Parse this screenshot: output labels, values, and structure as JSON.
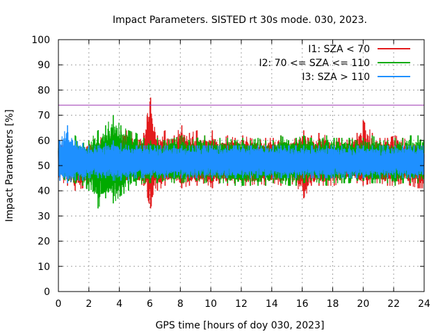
{
  "chart_data": {
    "type": "line",
    "title": "Impact Parameters. SISTED rt 30s mode. 030, 2023.",
    "xlabel": "GPS time [hours of doy 030, 2023]",
    "ylabel": "Impact Parameters [%]",
    "xlim": [
      0,
      24
    ],
    "ylim": [
      0,
      100
    ],
    "xticks": [
      0,
      2,
      4,
      6,
      8,
      10,
      12,
      14,
      16,
      18,
      20,
      22,
      24
    ],
    "yticks": [
      0,
      10,
      20,
      30,
      40,
      50,
      60,
      70,
      80,
      90,
      100
    ],
    "grid": true,
    "legend_position": "top-right",
    "threshold": {
      "value": 74,
      "color": "#9b30b0"
    },
    "series": [
      {
        "name": "I1: SZA < 70",
        "color": "#e31a1c",
        "x": [
          0.1,
          0.6,
          1.1,
          1.6,
          2.0,
          2.6,
          3.1,
          3.6,
          4.1,
          4.6,
          5.1,
          5.6,
          6.05,
          6.5,
          7.0,
          7.6,
          8.1,
          8.6,
          9.1,
          9.6,
          10.1,
          10.6,
          11.1,
          11.6,
          12.1,
          12.6,
          13.1,
          13.6,
          14.1,
          14.6,
          15.1,
          15.6,
          16.1,
          16.6,
          17.1,
          17.6,
          18.1,
          18.6,
          19.1,
          19.6,
          20.0,
          20.6,
          21.1,
          21.6,
          22.1,
          22.6,
          23.1,
          23.6
        ],
        "high": [
          60,
          59,
          58,
          57,
          60,
          61,
          62,
          62,
          64,
          64,
          62,
          63,
          77,
          62,
          64,
          62,
          66,
          63,
          64,
          62,
          64,
          60,
          62,
          61,
          62,
          61,
          60,
          61,
          61,
          62,
          60,
          61,
          64,
          62,
          63,
          62,
          61,
          61,
          60,
          63,
          68,
          63,
          61,
          61,
          62,
          61,
          60,
          60
        ],
        "low": [
          44,
          42,
          40,
          41,
          43,
          43,
          43,
          44,
          42,
          43,
          43,
          42,
          33,
          40,
          42,
          43,
          41,
          42,
          42,
          43,
          41,
          43,
          42,
          43,
          42,
          42,
          43,
          42,
          43,
          42,
          43,
          42,
          37,
          42,
          42,
          42,
          42,
          43,
          44,
          43,
          42,
          43,
          43,
          42,
          42,
          43,
          42,
          41
        ]
      },
      {
        "name": "I2: 70 <= SZA <= 110",
        "color": "#00aa00",
        "x": [
          0.1,
          0.6,
          1.1,
          1.6,
          2.0,
          2.6,
          3.1,
          3.6,
          4.1,
          4.6,
          5.1,
          5.6,
          6.05,
          6.5,
          7.0,
          7.6,
          8.1,
          8.6,
          9.1,
          9.6,
          10.1,
          10.6,
          11.1,
          11.6,
          12.1,
          12.6,
          13.1,
          13.6,
          14.1,
          14.6,
          15.1,
          15.6,
          16.1,
          16.6,
          17.1,
          17.6,
          18.1,
          18.6,
          19.1,
          19.6,
          20.0,
          20.6,
          21.1,
          21.6,
          22.1,
          22.6,
          23.1,
          23.6
        ],
        "high": [
          58,
          59,
          62,
          59,
          60,
          64,
          66,
          70,
          66,
          64,
          63,
          61,
          60,
          61,
          60,
          61,
          62,
          60,
          61,
          62,
          60,
          61,
          61,
          60,
          61,
          60,
          61,
          60,
          60,
          62,
          60,
          61,
          62,
          61,
          60,
          62,
          61,
          61,
          61,
          60,
          61,
          62,
          60,
          60,
          61,
          61,
          62,
          62
        ],
        "low": [
          45,
          44,
          43,
          42,
          40,
          33,
          37,
          35,
          38,
          40,
          42,
          43,
          43,
          43,
          44,
          43,
          43,
          44,
          44,
          43,
          44,
          43,
          43,
          42,
          42,
          42,
          42,
          42,
          43,
          43,
          42,
          42,
          43,
          44,
          43,
          42,
          43,
          43,
          43,
          44,
          44,
          43,
          43,
          43,
          42,
          43,
          43,
          43
        ]
      },
      {
        "name": "I3: SZA > 110",
        "color": "#1e90ff",
        "x": [
          0.1,
          0.6,
          1.1,
          1.6,
          2.0,
          2.6,
          3.1,
          3.6,
          4.1,
          4.6,
          5.1,
          5.6,
          6.05,
          6.5,
          7.0,
          7.6,
          8.1,
          8.6,
          9.1,
          9.6,
          10.1,
          10.6,
          11.1,
          11.6,
          12.1,
          12.6,
          13.1,
          13.6,
          14.1,
          14.6,
          15.1,
          15.6,
          16.1,
          16.6,
          17.1,
          17.6,
          18.1,
          18.6,
          19.1,
          19.6,
          20.0,
          20.6,
          21.1,
          21.6,
          22.1,
          22.6,
          23.1,
          23.6
        ],
        "high": [
          60,
          66,
          60,
          59,
          58,
          58,
          59,
          60,
          59,
          58,
          58,
          58,
          58,
          58,
          58,
          58,
          58,
          58,
          58,
          58,
          58,
          58,
          58,
          58,
          58,
          58,
          58,
          58,
          58,
          58,
          58,
          58,
          58,
          58,
          58,
          58,
          58,
          58,
          58,
          58,
          58,
          58,
          58,
          58,
          58,
          58,
          58,
          58
        ],
        "low": [
          44,
          43,
          44,
          44,
          45,
          45,
          45,
          44,
          44,
          44,
          45,
          45,
          45,
          45,
          45,
          45,
          45,
          45,
          45,
          45,
          45,
          45,
          45,
          45,
          45,
          45,
          45,
          45,
          45,
          45,
          45,
          45,
          45,
          45,
          45,
          45,
          45,
          45,
          45,
          45,
          45,
          45,
          45,
          45,
          45,
          45,
          45,
          45
        ]
      }
    ]
  }
}
